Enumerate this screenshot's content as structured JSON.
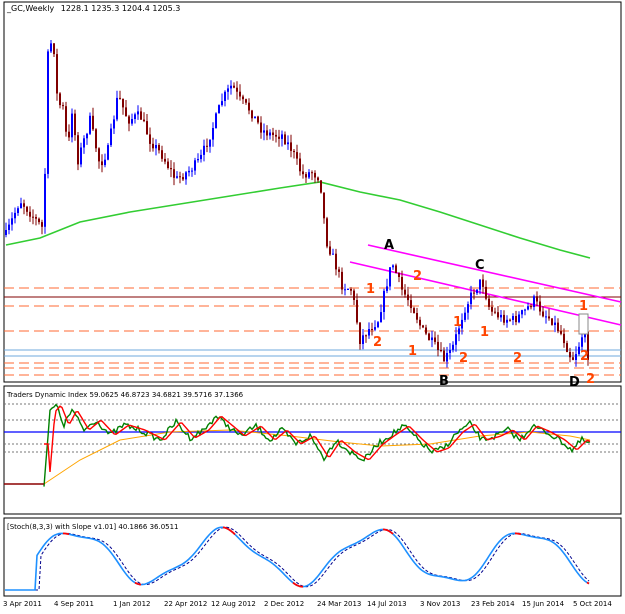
{
  "main_panel": {
    "header_symbol": "_GC,Weekly",
    "header_ohlc": "1228.1 1235.3 1204.4 1205.3",
    "wave_labels": [
      {
        "text": "A",
        "color": "#000000"
      },
      {
        "text": "B",
        "color": "#000000"
      },
      {
        "text": "C",
        "color": "#000000"
      },
      {
        "text": "D",
        "color": "#000000"
      },
      {
        "text": "1",
        "color": "#ff4500"
      },
      {
        "text": "2",
        "color": "#ff4500"
      },
      {
        "text": "1",
        "color": "#ff4500"
      },
      {
        "text": "2",
        "color": "#ff4500"
      },
      {
        "text": "1",
        "color": "#ff4500"
      },
      {
        "text": "2",
        "color": "#ff4500"
      },
      {
        "text": "1",
        "color": "#ff4500"
      },
      {
        "text": "2",
        "color": "#ff4500"
      },
      {
        "text": "1",
        "color": "#ff4500"
      },
      {
        "text": "2",
        "color": "#ff4500"
      },
      {
        "text": "2",
        "color": "#ff4500"
      }
    ],
    "colors": {
      "bull": "#0000ff",
      "bear": "#800000",
      "moving_average": "#32cd32",
      "channel": "#ff00ff",
      "support_resistance": "#ff6a33",
      "support_blue": "#6fa8dc"
    }
  },
  "indicator_1": {
    "label": "Traders Dynamic Index 59.0625 46.8723 34.6821 39.5716 37.1366",
    "colors": {
      "green": "#008000",
      "red": "#ff0000",
      "orange": "#ffa500",
      "blue": "#0000ff",
      "dark_red": "#8b0000"
    }
  },
  "indicator_2": {
    "label": "[Stoch(8,3,3) with Slope v1.01] 40.1866 36.0511",
    "colors": {
      "main": "#1e90ff",
      "signal": "#00008b",
      "slope_down": "#ff0000"
    }
  },
  "x_axis": {
    "labels": [
      "3 Apr 2011",
      "4 Sep 2011",
      "1 Jan 2012",
      "22 Apr 2012",
      "12 Aug 2012",
      "2 Dec 2012",
      "24 Mar 2013",
      "14 Jul 2013",
      "3 Nov 2013",
      "23 Feb 2014",
      "15 Jun 2014",
      "5 Oct 2014"
    ]
  }
}
